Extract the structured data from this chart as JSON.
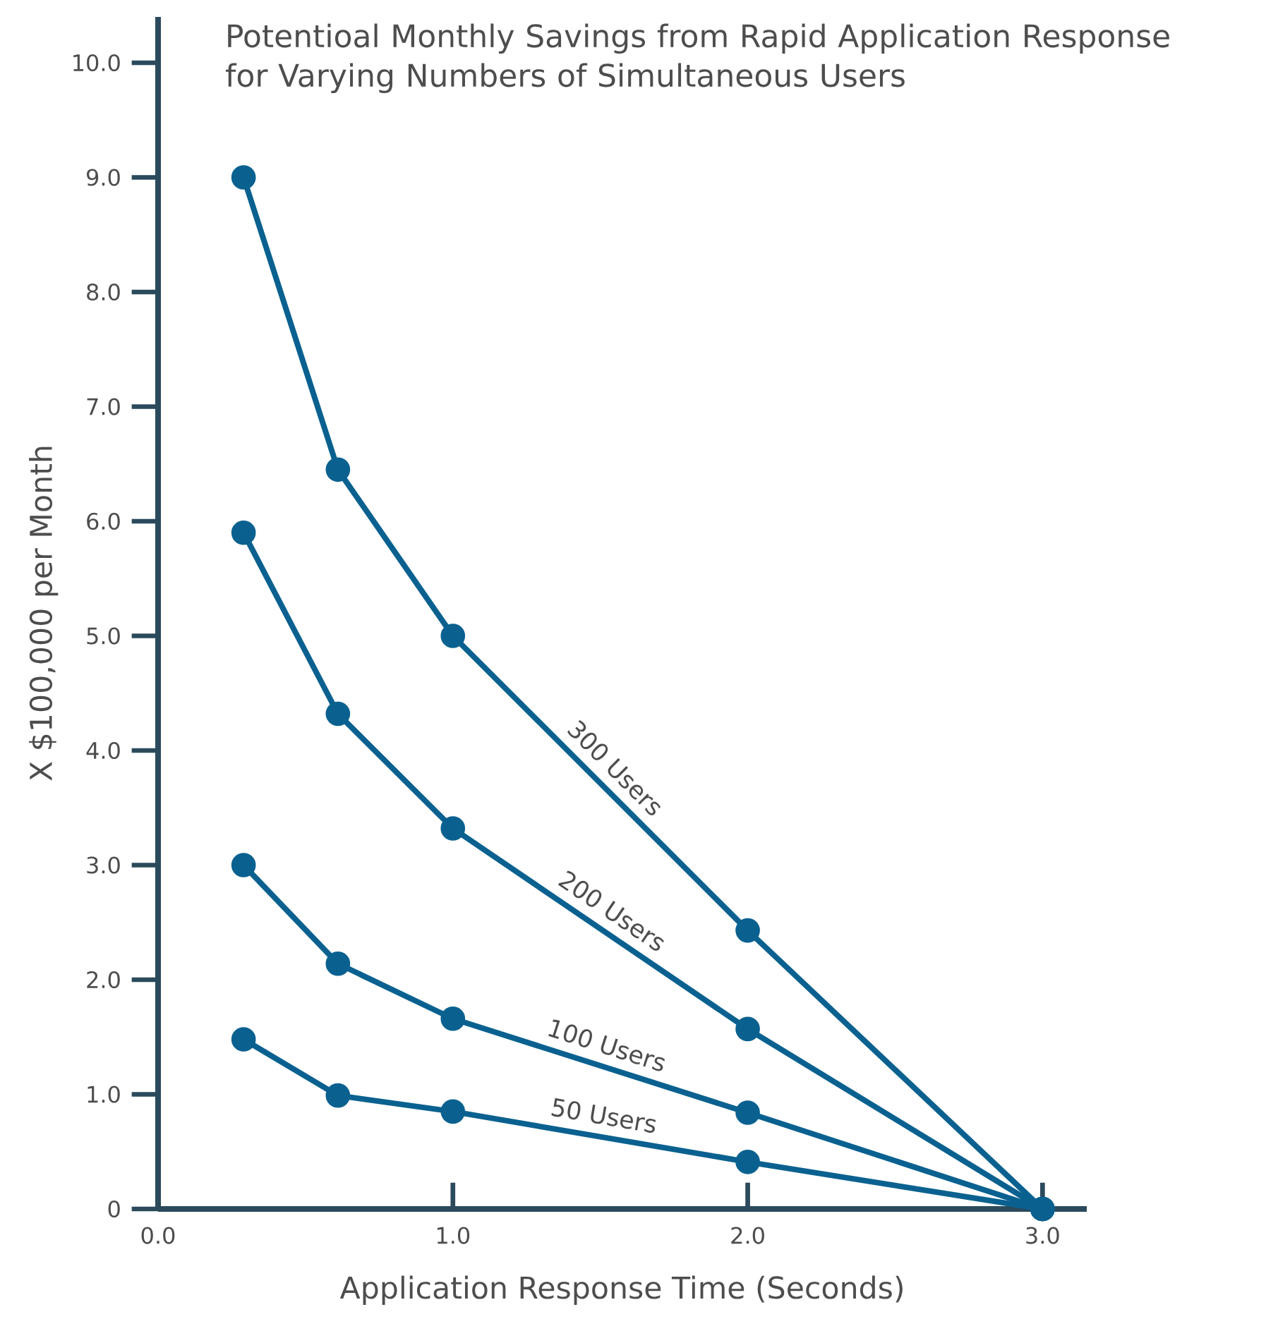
{
  "chart_data": {
    "type": "line",
    "title": "Potentioal Monthly Savings from Rapid Application Response for Varying Numbers of Simultaneous Users",
    "xlabel": "Application Response Time (Seconds)",
    "ylabel": "X $100,000 per Month",
    "xlim": [
      0,
      3.15
    ],
    "ylim": [
      0,
      10.4
    ],
    "xticks": [
      {
        "value": 0,
        "label": "0.0"
      },
      {
        "value": 1,
        "label": "1.0"
      },
      {
        "value": 2,
        "label": "2.0"
      },
      {
        "value": 3,
        "label": "3.0"
      }
    ],
    "yticks": [
      0,
      {
        "value": 1,
        "label": "1.0"
      },
      {
        "value": 2,
        "label": "2.0"
      },
      {
        "value": 3,
        "label": "3.0"
      },
      {
        "value": 4,
        "label": "4.0"
      },
      {
        "value": 5,
        "label": "5.0"
      },
      {
        "value": 6,
        "label": "6.0"
      },
      {
        "value": 7,
        "label": "7.0"
      },
      {
        "value": 8,
        "label": "8.0"
      },
      {
        "value": 9,
        "label": "9.0"
      },
      {
        "value": 10,
        "label": "10.0"
      }
    ],
    "x": [
      0.29,
      0.61,
      1.0,
      2.0,
      3.0
    ],
    "marker": "circle",
    "line_style": "solid",
    "series": [
      {
        "name": "300 Users",
        "color": "#0a6190",
        "values": [
          9.0,
          6.45,
          5.0,
          2.43,
          0
        ]
      },
      {
        "name": "200 Users",
        "color": "#0a6190",
        "values": [
          5.9,
          4.32,
          3.32,
          1.57,
          0
        ]
      },
      {
        "name": "100 Users",
        "color": "#0a6190",
        "values": [
          3.0,
          2.14,
          1.66,
          0.84,
          0
        ]
      },
      {
        "name": "50 Users",
        "color": "#0a6190",
        "values": [
          1.48,
          0.99,
          0.85,
          0.41,
          0
        ]
      }
    ]
  }
}
